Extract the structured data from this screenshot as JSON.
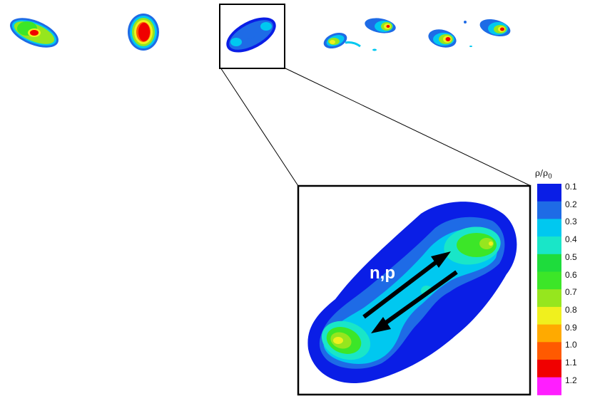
{
  "colorbar": {
    "title_symbol": "ρ/ρ",
    "title_subscript": "0",
    "levels": [
      "0.1",
      "0.2",
      "0.3",
      "0.4",
      "0.5",
      "0.6",
      "0.7",
      "0.8",
      "0.9",
      "1.0",
      "1.1",
      "1.2"
    ],
    "colors": [
      "#0a1ee6",
      "#1e6be6",
      "#00c8f0",
      "#19e6c8",
      "#1edc3c",
      "#3ce628",
      "#96e61e",
      "#f0f01e",
      "#ffaa00",
      "#ff5a00",
      "#f00000",
      "#ff1eff"
    ]
  },
  "zoom_panel": {
    "flow_label": "n,p"
  }
}
